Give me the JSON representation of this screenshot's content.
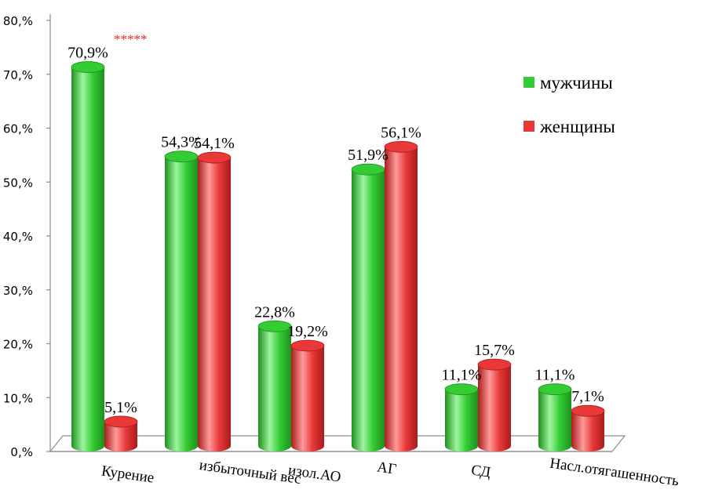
{
  "chart_data": {
    "type": "bar",
    "categories": [
      "Курение",
      "избыточный вес",
      "изол.АО",
      "АГ",
      "СД",
      "Насл.отягашенность"
    ],
    "series": [
      {
        "name": "мужчины",
        "values": [
          70.9,
          54.3,
          22.8,
          51.9,
          11.1,
          11.1
        ],
        "labels": [
          "70,9%",
          "54,3%",
          "22,8%",
          "51,9%",
          "11,1%",
          "11,1%"
        ]
      },
      {
        "name": "женщины",
        "values": [
          5.1,
          54.1,
          19.2,
          56.1,
          15.7,
          7.1
        ],
        "labels": [
          "5,1%",
          "54,1%",
          "19,2%",
          "56,1%",
          "15,7%",
          "7,1%"
        ]
      }
    ],
    "ylim": [
      0,
      80
    ],
    "yticks": [
      "0,%",
      "10,%",
      "20,%",
      "30,%",
      "40,%",
      "50,%",
      "60,%",
      "70,%",
      "80,%"
    ],
    "title": "",
    "xlabel": "",
    "ylabel": "",
    "legend_position": "right",
    "annotation": {
      "category_index": 0,
      "text": "*****",
      "color": "#e52222"
    },
    "colors": {
      "series": [
        "#33cc33",
        "#e83838"
      ],
      "series_dark": [
        "#1f8f1f",
        "#a81c1c"
      ],
      "series_light": [
        "#9ef59e",
        "#ff9a9a"
      ]
    }
  }
}
